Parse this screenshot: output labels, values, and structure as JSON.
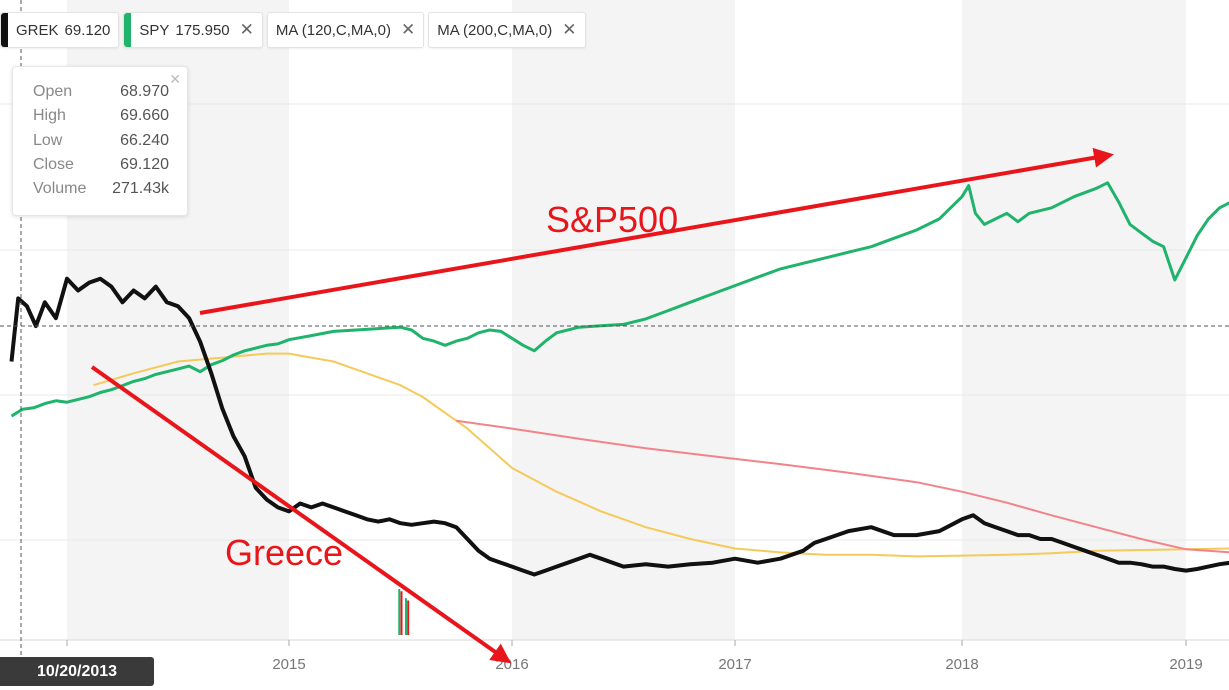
{
  "legend": [
    {
      "symbol": "GREK",
      "value": "69.120",
      "color": "#111111",
      "closable": false
    },
    {
      "symbol": "SPY",
      "value": "175.950",
      "color": "#1fb36b",
      "closable": true
    },
    {
      "symbol": "MA (120,C,MA,0)",
      "value": "",
      "color": "#ffffff",
      "closable": true
    },
    {
      "symbol": "MA (200,C,MA,0)",
      "value": "",
      "color": "#ffffff",
      "closable": true
    }
  ],
  "close_glyph": "✕",
  "tooltip": {
    "open_label": "Open",
    "open": "68.970",
    "high_label": "High",
    "high": "69.660",
    "low_label": "Low",
    "low": "66.240",
    "close_label": "Close",
    "close": "69.120",
    "volume_label": "Volume",
    "volume": "271.43k",
    "close_glyph": "✕"
  },
  "crosshair_date": "10/20/2013",
  "annotations": {
    "sp500": "S&P500",
    "greece": "Greece",
    "color": "#e8161b"
  },
  "colors": {
    "grek": "#111111",
    "spy": "#1fb36b",
    "ma120": "#f5c95a",
    "ma200": "#f2838a",
    "band": "#f3f4f3",
    "grid": "#e9e9e9",
    "axis_text": "#777777"
  },
  "chart_data": {
    "type": "line",
    "x_tick_labels": [
      "2015",
      "2016",
      "2017",
      "2018",
      "2019"
    ],
    "x_range": [
      2013.75,
      2019.2
    ],
    "series": [
      {
        "name": "GREK",
        "x": [
          2013.75,
          2013.78,
          2013.82,
          2013.86,
          2013.9,
          2013.95,
          2014.0,
          2014.05,
          2014.1,
          2014.15,
          2014.2,
          2014.25,
          2014.3,
          2014.35,
          2014.4,
          2014.45,
          2014.5,
          2014.55,
          2014.6,
          2014.65,
          2014.7,
          2014.75,
          2014.8,
          2014.85,
          2014.9,
          2014.95,
          2015.0,
          2015.05,
          2015.1,
          2015.15,
          2015.2,
          2015.25,
          2015.3,
          2015.35,
          2015.4,
          2015.45,
          2015.5,
          2015.55,
          2015.6,
          2015.65,
          2015.7,
          2015.75,
          2015.8,
          2015.85,
          2015.9,
          2015.95,
          2016.0,
          2016.05,
          2016.1,
          2016.15,
          2016.2,
          2016.25,
          2016.3,
          2016.35,
          2016.4,
          2016.5,
          2016.6,
          2016.7,
          2016.8,
          2016.9,
          2017.0,
          2017.1,
          2017.2,
          2017.3,
          2017.35,
          2017.4,
          2017.5,
          2017.6,
          2017.7,
          2017.8,
          2017.9,
          2018.0,
          2018.05,
          2018.1,
          2018.15,
          2018.2,
          2018.25,
          2018.3,
          2018.35,
          2018.4,
          2018.45,
          2018.5,
          2018.55,
          2018.6,
          2018.65,
          2018.7,
          2018.75,
          2018.8,
          2018.85,
          2018.9,
          2018.95,
          2019.0,
          2019.05,
          2019.1,
          2019.15,
          2019.2
        ],
        "y": [
          61.5,
          69.5,
          68.5,
          66.0,
          69.0,
          67.0,
          72.0,
          70.5,
          71.5,
          72.0,
          71.0,
          69.0,
          70.5,
          69.5,
          71.0,
          69.0,
          68.5,
          67.0,
          64.0,
          60.0,
          55.5,
          52.0,
          49.5,
          45.5,
          44.0,
          43.0,
          42.5,
          43.5,
          43.0,
          43.5,
          43.0,
          42.5,
          42.0,
          41.5,
          41.2,
          41.5,
          41.0,
          40.8,
          41.0,
          41.2,
          41.0,
          40.5,
          39.0,
          37.5,
          36.5,
          36.0,
          35.5,
          35.0,
          34.5,
          35.0,
          35.5,
          36.0,
          36.5,
          37.0,
          36.5,
          35.5,
          35.8,
          35.5,
          35.8,
          36.0,
          36.5,
          36.0,
          36.5,
          37.5,
          38.5,
          39.0,
          40.0,
          40.5,
          39.5,
          39.5,
          40.0,
          41.5,
          42.0,
          41.0,
          40.5,
          40.0,
          39.5,
          39.5,
          39.0,
          39.0,
          38.5,
          38.0,
          37.5,
          37.0,
          36.5,
          36.0,
          36.0,
          35.8,
          35.5,
          35.5,
          35.2,
          35.0,
          35.2,
          35.5,
          35.8,
          36.0
        ]
      },
      {
        "name": "SPY",
        "x": [
          2013.75,
          2013.8,
          2013.85,
          2013.9,
          2013.95,
          2014.0,
          2014.05,
          2014.1,
          2014.15,
          2014.2,
          2014.25,
          2014.3,
          2014.35,
          2014.4,
          2014.45,
          2014.5,
          2014.55,
          2014.6,
          2014.65,
          2014.7,
          2014.75,
          2014.8,
          2014.85,
          2014.9,
          2014.95,
          2015.0,
          2015.1,
          2015.2,
          2015.3,
          2015.4,
          2015.5,
          2015.55,
          2015.6,
          2015.65,
          2015.7,
          2015.75,
          2015.8,
          2015.85,
          2015.9,
          2015.95,
          2016.0,
          2016.05,
          2016.1,
          2016.15,
          2016.2,
          2016.3,
          2016.4,
          2016.5,
          2016.6,
          2016.7,
          2016.8,
          2016.9,
          2017.0,
          2017.1,
          2017.2,
          2017.3,
          2017.4,
          2017.5,
          2017.6,
          2017.7,
          2017.8,
          2017.9,
          2018.0,
          2018.03,
          2018.06,
          2018.1,
          2018.15,
          2018.2,
          2018.25,
          2018.3,
          2018.4,
          2018.5,
          2018.6,
          2018.65,
          2018.7,
          2018.75,
          2018.8,
          2018.85,
          2018.9,
          2018.95,
          2019.0,
          2019.05,
          2019.1,
          2019.15,
          2019.2
        ],
        "y": [
          175.0,
          177.5,
          178.0,
          179.5,
          180.5,
          180.0,
          181.0,
          182.0,
          183.5,
          184.5,
          186.0,
          187.5,
          188.5,
          190.0,
          191.0,
          192.0,
          193.0,
          191.0,
          193.5,
          195.0,
          197.0,
          198.5,
          199.5,
          200.5,
          201.0,
          202.5,
          204.0,
          205.5,
          206.0,
          206.5,
          207.0,
          206.0,
          203.0,
          202.0,
          200.5,
          202.0,
          203.0,
          205.0,
          206.0,
          205.5,
          203.0,
          200.5,
          198.5,
          202.0,
          205.0,
          207.0,
          207.5,
          208.0,
          210.0,
          213.0,
          216.0,
          219.0,
          222.0,
          225.0,
          228.0,
          230.0,
          232.0,
          234.0,
          236.0,
          239.0,
          242.0,
          246.0,
          254.0,
          258.0,
          248.0,
          244.0,
          246.0,
          248.0,
          245.0,
          248.0,
          250.0,
          254.0,
          257.0,
          259.0,
          252.0,
          244.0,
          241.0,
          238.0,
          236.0,
          224.0,
          232.0,
          240.0,
          246.0,
          250.0,
          252.0
        ]
      },
      {
        "name": "MA (120,C,MA,0)",
        "x": [
          2014.12,
          2014.3,
          2014.5,
          2014.7,
          2014.9,
          2015.0,
          2015.1,
          2015.2,
          2015.3,
          2015.4,
          2015.5,
          2015.6,
          2015.7,
          2015.8,
          2015.9,
          2016.0,
          2016.2,
          2016.4,
          2016.6,
          2016.8,
          2017.0,
          2017.2,
          2017.4,
          2017.6,
          2017.8,
          2018.0,
          2018.2,
          2018.4,
          2018.6,
          2018.8,
          2019.0,
          2019.2
        ],
        "y": [
          58.5,
          60.0,
          61.5,
          62.0,
          62.5,
          62.5,
          62.0,
          61.5,
          60.5,
          59.5,
          58.5,
          57.0,
          55.0,
          53.0,
          50.5,
          48.0,
          45.0,
          42.5,
          40.5,
          39.0,
          37.8,
          37.3,
          37.0,
          37.0,
          36.8,
          36.9,
          37.0,
          37.2,
          37.5,
          37.6,
          37.7,
          37.8
        ]
      },
      {
        "name": "MA (200,C,MA,0)",
        "x": [
          2015.75,
          2016.0,
          2016.3,
          2016.6,
          2016.9,
          2017.2,
          2017.5,
          2017.8,
          2018.0,
          2018.2,
          2018.4,
          2018.6,
          2018.8,
          2019.0,
          2019.2
        ],
        "y": [
          54.0,
          53.0,
          51.7,
          50.5,
          49.5,
          48.5,
          47.4,
          46.2,
          45.0,
          43.6,
          42.0,
          40.5,
          39.0,
          37.7,
          37.3
        ]
      }
    ],
    "volume_bars": [
      {
        "x": 2015.49,
        "value": 1.0,
        "color": "#1fb36b"
      },
      {
        "x": 2015.5,
        "value": 0.95,
        "color": "#e8161b"
      },
      {
        "x": 2015.52,
        "value": 0.8,
        "color": "#1fb36b"
      },
      {
        "x": 2015.53,
        "value": 0.75,
        "color": "#e8161b"
      }
    ]
  }
}
